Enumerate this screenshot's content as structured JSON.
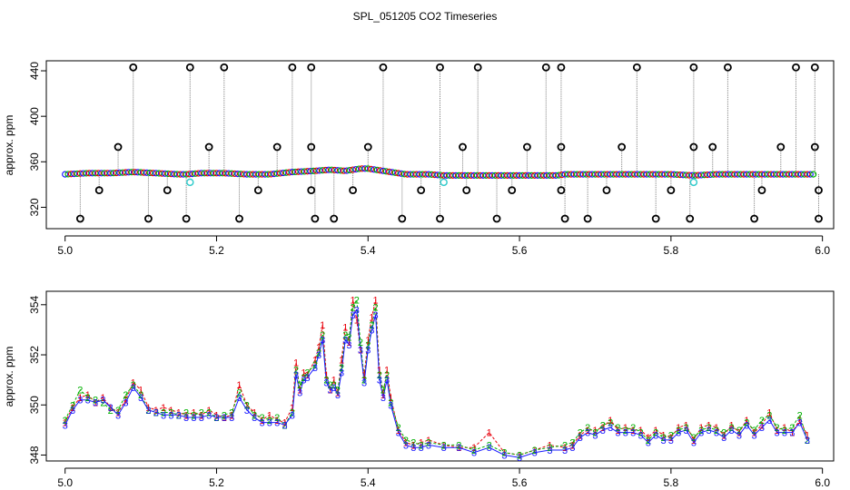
{
  "title": "SPL_051205  CO2 Timeseries",
  "colors": {
    "black": "#000000",
    "red": "#e8000b",
    "green": "#00b000",
    "blue": "#1a1aff",
    "cyan": "#33cccc",
    "grey": "#808080"
  },
  "chart_data": [
    {
      "type": "scatter",
      "panel": "top",
      "ylabel": "approx. ppm",
      "xlim": [
        4.98,
        6.01
      ],
      "ylim": [
        302,
        448
      ],
      "xticks": [
        "5.0",
        "5.2",
        "5.4",
        "5.6",
        "5.8",
        "6.0"
      ],
      "yticks": [
        "320",
        "360",
        "400",
        "440"
      ],
      "baseline": {
        "x": [
          5.0,
          5.03,
          5.06,
          5.09,
          5.12,
          5.15,
          5.16,
          5.18,
          5.21,
          5.24,
          5.27,
          5.3,
          5.33,
          5.35,
          5.37,
          5.39,
          5.4,
          5.42,
          5.45,
          5.48,
          5.5,
          5.55,
          5.6,
          5.65,
          5.66,
          5.7,
          5.75,
          5.8,
          5.83,
          5.86,
          5.9,
          5.95,
          5.99
        ],
        "y": [
          349,
          350,
          350,
          351,
          350,
          349,
          349,
          350,
          350,
          349,
          349,
          351,
          352,
          353,
          352,
          354,
          354,
          352,
          349,
          349,
          348,
          348,
          348,
          348,
          349,
          349,
          349,
          349,
          348,
          349,
          349,
          349,
          349
        ]
      },
      "outliers_high": [
        5.09,
        5.165,
        5.21,
        5.3,
        5.325,
        5.42,
        5.495,
        5.545,
        5.635,
        5.655,
        5.755,
        5.83,
        5.875,
        5.965,
        5.99
      ],
      "outliers_mid": [
        5.07,
        5.19,
        5.28,
        5.325,
        5.4,
        5.525,
        5.61,
        5.655,
        5.735,
        5.83,
        5.855,
        5.945,
        5.99
      ],
      "outliers_low": [
        5.02,
        5.11,
        5.16,
        5.23,
        5.33,
        5.355,
        5.445,
        5.495,
        5.57,
        5.66,
        5.69,
        5.78,
        5.825,
        5.91,
        5.995
      ],
      "outliers_mid_low": [
        5.045,
        5.135,
        5.255,
        5.325,
        5.38,
        5.47,
        5.53,
        5.59,
        5.655,
        5.715,
        5.8,
        5.92,
        5.995
      ],
      "cyan_points": [
        [
          5.165,
          342
        ],
        [
          5.5,
          342
        ],
        [
          5.83,
          342
        ]
      ]
    },
    {
      "type": "line",
      "panel": "bottom",
      "ylabel": "approx. ppm",
      "xlim": [
        4.98,
        6.01
      ],
      "ylim": [
        347.8,
        354.5
      ],
      "xticks": [
        "5.0",
        "5.2",
        "5.4",
        "5.6",
        "5.8",
        "6.0"
      ],
      "yticks": [
        "348",
        "350",
        "352",
        "354"
      ],
      "series": [
        {
          "marker": "1",
          "x": [
            5.0,
            5.01,
            5.02,
            5.03,
            5.04,
            5.05,
            5.06,
            5.07,
            5.08,
            5.09,
            5.1,
            5.11,
            5.12,
            5.13,
            5.14,
            5.15,
            5.16,
            5.17,
            5.18,
            5.19,
            5.2,
            5.21,
            5.22,
            5.23,
            5.24,
            5.25,
            5.26,
            5.27,
            5.28,
            5.29,
            5.3,
            5.305,
            5.31,
            5.315,
            5.32,
            5.33,
            5.335,
            5.34,
            5.345,
            5.35,
            5.355,
            5.36,
            5.365,
            5.37,
            5.375,
            5.38,
            5.385,
            5.39,
            5.395,
            5.4,
            5.405,
            5.41,
            5.415,
            5.42,
            5.425,
            5.43,
            5.44,
            5.45,
            5.46,
            5.47,
            5.48,
            5.5,
            5.52,
            5.54,
            5.56,
            5.58,
            5.6,
            5.62,
            5.64,
            5.66,
            5.67,
            5.68,
            5.69,
            5.7,
            5.71,
            5.72,
            5.73,
            5.74,
            5.75,
            5.76,
            5.77,
            5.78,
            5.79,
            5.8,
            5.81,
            5.82,
            5.83,
            5.84,
            5.85,
            5.86,
            5.87,
            5.88,
            5.89,
            5.9,
            5.91,
            5.92,
            5.93,
            5.94,
            5.95,
            5.96,
            5.97,
            5.98
          ],
          "y": [
            349.3,
            349.9,
            350.3,
            350.4,
            350.1,
            350.3,
            349.9,
            349.7,
            350.2,
            350.9,
            350.6,
            349.9,
            349.8,
            349.9,
            349.8,
            349.7,
            349.6,
            349.7,
            349.6,
            349.8,
            349.6,
            349.5,
            349.6,
            350.8,
            350.0,
            349.7,
            349.4,
            349.6,
            349.4,
            349.3,
            349.9,
            351.7,
            350.6,
            351.3,
            351.2,
            351.8,
            352.3,
            353.2,
            351.2,
            350.6,
            351.0,
            350.5,
            351.8,
            353.1,
            352.5,
            354.2,
            353.4,
            352.2,
            351.2,
            352.6,
            353.5,
            354.2,
            351.4,
            350.4,
            351.4,
            350.3,
            349.0,
            348.5,
            348.4,
            348.5,
            348.6,
            348.4,
            348.3,
            348.3,
            348.9,
            348.1,
            348.0,
            348.2,
            348.4,
            348.3,
            348.4,
            348.8,
            349.0,
            349.0,
            349.1,
            349.4,
            349.0,
            349.1,
            349.0,
            349.0,
            348.7,
            349.0,
            348.8,
            348.7,
            349.1,
            349.2,
            348.6,
            349.1,
            349.2,
            349.1,
            348.8,
            349.2,
            348.9,
            349.4,
            348.9,
            349.2,
            349.7,
            349.0,
            349.1,
            348.9,
            349.4,
            348.8
          ]
        },
        {
          "marker": "2",
          "x": [
            5.0,
            5.01,
            5.02,
            5.03,
            5.04,
            5.05,
            5.06,
            5.07,
            5.08,
            5.09,
            5.1,
            5.11,
            5.12,
            5.13,
            5.14,
            5.15,
            5.16,
            5.17,
            5.18,
            5.19,
            5.2,
            5.21,
            5.22,
            5.23,
            5.24,
            5.25,
            5.26,
            5.27,
            5.28,
            5.29,
            5.3,
            5.305,
            5.31,
            5.315,
            5.32,
            5.33,
            5.335,
            5.34,
            5.345,
            5.35,
            5.355,
            5.36,
            5.365,
            5.37,
            5.375,
            5.38,
            5.385,
            5.39,
            5.395,
            5.4,
            5.405,
            5.41,
            5.415,
            5.42,
            5.425,
            5.43,
            5.44,
            5.45,
            5.46,
            5.47,
            5.48,
            5.5,
            5.52,
            5.54,
            5.56,
            5.58,
            5.6,
            5.62,
            5.64,
            5.66,
            5.67,
            5.68,
            5.69,
            5.7,
            5.71,
            5.72,
            5.73,
            5.74,
            5.75,
            5.76,
            5.77,
            5.78,
            5.79,
            5.8,
            5.81,
            5.82,
            5.83,
            5.84,
            5.85,
            5.86,
            5.87,
            5.88,
            5.89,
            5.9,
            5.91,
            5.92,
            5.93,
            5.94,
            5.95,
            5.96,
            5.97,
            5.98
          ],
          "y": [
            349.4,
            350.0,
            350.6,
            350.3,
            350.2,
            350.1,
            349.8,
            349.8,
            350.4,
            350.8,
            350.4,
            349.8,
            349.7,
            349.7,
            349.7,
            349.6,
            349.7,
            349.6,
            349.7,
            349.7,
            349.5,
            349.6,
            349.7,
            350.5,
            350.0,
            349.6,
            349.5,
            349.4,
            349.5,
            349.2,
            349.7,
            351.4,
            350.8,
            351.1,
            351.3,
            351.6,
            352.1,
            352.8,
            351.0,
            350.8,
            350.8,
            350.6,
            351.5,
            352.8,
            352.7,
            353.9,
            354.2,
            352.5,
            351.0,
            352.4,
            353.2,
            353.9,
            351.2,
            350.6,
            351.2,
            350.1,
            349.1,
            348.6,
            348.5,
            348.4,
            348.5,
            348.4,
            348.4,
            348.2,
            348.4,
            348.1,
            348.0,
            348.2,
            348.3,
            348.4,
            348.5,
            348.9,
            349.1,
            348.9,
            349.2,
            349.3,
            349.1,
            349.0,
            349.1,
            348.9,
            348.6,
            348.9,
            348.7,
            348.8,
            349.0,
            349.1,
            348.7,
            349.0,
            349.1,
            349.0,
            348.9,
            349.1,
            349.0,
            349.3,
            349.0,
            349.4,
            349.6,
            349.1,
            349.0,
            349.1,
            349.6,
            348.6
          ]
        },
        {
          "marker": "3",
          "x": [
            5.0,
            5.01,
            5.02,
            5.03,
            5.04,
            5.05,
            5.06,
            5.07,
            5.08,
            5.09,
            5.1,
            5.11,
            5.12,
            5.13,
            5.14,
            5.15,
            5.16,
            5.17,
            5.18,
            5.19,
            5.2,
            5.21,
            5.22,
            5.23,
            5.24,
            5.25,
            5.26,
            5.27,
            5.28,
            5.29,
            5.3,
            5.305,
            5.31,
            5.315,
            5.32,
            5.33,
            5.335,
            5.34,
            5.345,
            5.35,
            5.355,
            5.36,
            5.365,
            5.37,
            5.375,
            5.38,
            5.385,
            5.39,
            5.395,
            5.4,
            5.405,
            5.41,
            5.415,
            5.42,
            5.425,
            5.43,
            5.44,
            5.45,
            5.46,
            5.47,
            5.48,
            5.5,
            5.52,
            5.54,
            5.56,
            5.58,
            5.6,
            5.62,
            5.64,
            5.66,
            5.67,
            5.68,
            5.69,
            5.7,
            5.71,
            5.72,
            5.73,
            5.74,
            5.75,
            5.76,
            5.77,
            5.78,
            5.79,
            5.8,
            5.81,
            5.82,
            5.83,
            5.84,
            5.85,
            5.86,
            5.87,
            5.88,
            5.89,
            5.9,
            5.91,
            5.92,
            5.93,
            5.94,
            5.95,
            5.96,
            5.97,
            5.98
          ],
          "y": [
            349.2,
            349.8,
            350.2,
            350.2,
            350.1,
            350.2,
            349.9,
            349.6,
            350.1,
            350.7,
            350.3,
            349.8,
            349.7,
            349.6,
            349.6,
            349.6,
            349.5,
            349.5,
            349.5,
            349.6,
            349.5,
            349.5,
            349.5,
            350.3,
            349.8,
            349.5,
            349.3,
            349.3,
            349.3,
            349.2,
            349.6,
            351.2,
            350.5,
            351.0,
            351.1,
            351.5,
            352.0,
            352.6,
            350.9,
            350.6,
            350.7,
            350.4,
            351.3,
            352.6,
            352.4,
            353.6,
            353.8,
            352.2,
            350.9,
            352.2,
            353.0,
            353.6,
            351.0,
            350.3,
            351.0,
            350.0,
            348.9,
            348.4,
            348.3,
            348.3,
            348.4,
            348.3,
            348.3,
            348.1,
            348.3,
            348.0,
            347.9,
            348.1,
            348.2,
            348.2,
            348.3,
            348.7,
            348.9,
            348.8,
            349.0,
            349.1,
            348.9,
            348.9,
            348.9,
            348.8,
            348.5,
            348.8,
            348.6,
            348.6,
            348.9,
            349.0,
            348.5,
            348.9,
            349.0,
            348.9,
            348.7,
            349.0,
            348.8,
            349.2,
            348.8,
            349.1,
            349.4,
            348.9,
            348.9,
            348.9,
            349.3,
            348.6
          ]
        }
      ]
    }
  ]
}
